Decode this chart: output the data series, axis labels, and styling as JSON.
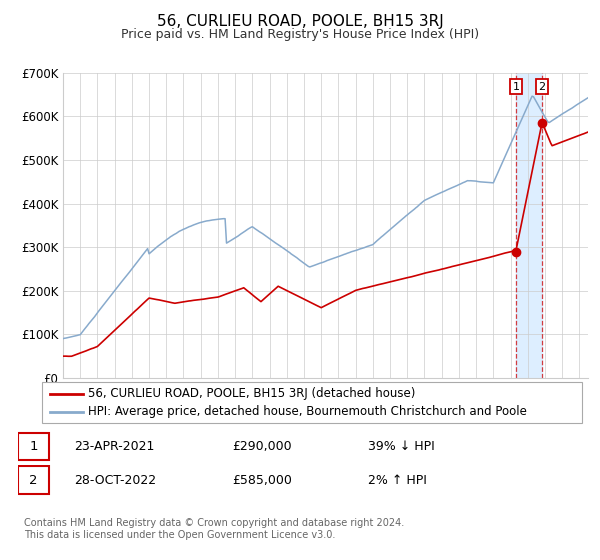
{
  "title": "56, CURLIEU ROAD, POOLE, BH15 3RJ",
  "subtitle": "Price paid vs. HM Land Registry's House Price Index (HPI)",
  "ylim": [
    0,
    700000
  ],
  "yticks": [
    0,
    100000,
    200000,
    300000,
    400000,
    500000,
    600000,
    700000
  ],
  "ytick_labels": [
    "£0",
    "£100K",
    "£200K",
    "£300K",
    "£400K",
    "£500K",
    "£600K",
    "£700K"
  ],
  "sale1_date": 2021.31,
  "sale1_price": 290000,
  "sale2_date": 2022.83,
  "sale2_price": 585000,
  "sale1_hpi_pct": "39% ↓ HPI",
  "sale2_hpi_pct": "2% ↑ HPI",
  "line_color_red": "#cc0000",
  "line_color_blue": "#88aacc",
  "highlight_color": "#ddeeff",
  "grid_color": "#cccccc",
  "background_color": "#ffffff",
  "legend1_text": "56, CURLIEU ROAD, POOLE, BH15 3RJ (detached house)",
  "legend2_text": "HPI: Average price, detached house, Bournemouth Christchurch and Poole",
  "footer": "Contains HM Land Registry data © Crown copyright and database right 2024.\nThis data is licensed under the Open Government Licence v3.0.",
  "sale1_date_str": "23-APR-2021",
  "sale2_date_str": "28-OCT-2022",
  "sale1_price_str": "£290,000",
  "sale2_price_str": "£585,000"
}
